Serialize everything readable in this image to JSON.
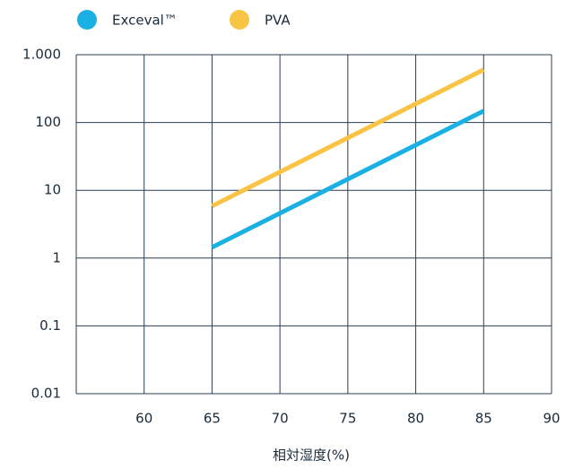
{
  "chart_data": {
    "type": "line",
    "x_label": "相対湿度(%)",
    "x": [
      65,
      85
    ],
    "series": [
      {
        "name": "Exceval™",
        "color": "#1ab0e4",
        "values": [
          1.44,
          148
        ]
      },
      {
        "name": "PVA",
        "color": "#f8c444",
        "values": [
          5.85,
          600
        ]
      }
    ],
    "xlim": [
      55,
      90
    ],
    "xticks": [
      60,
      65,
      70,
      75,
      80,
      85,
      90
    ],
    "ylim": [
      0.01,
      1000
    ],
    "yticks": [
      0.01,
      0.1,
      1,
      10,
      100,
      {
        "value": 1000,
        "label": "1.000"
      }
    ],
    "log_y": true,
    "grid": true,
    "legend": "top"
  }
}
